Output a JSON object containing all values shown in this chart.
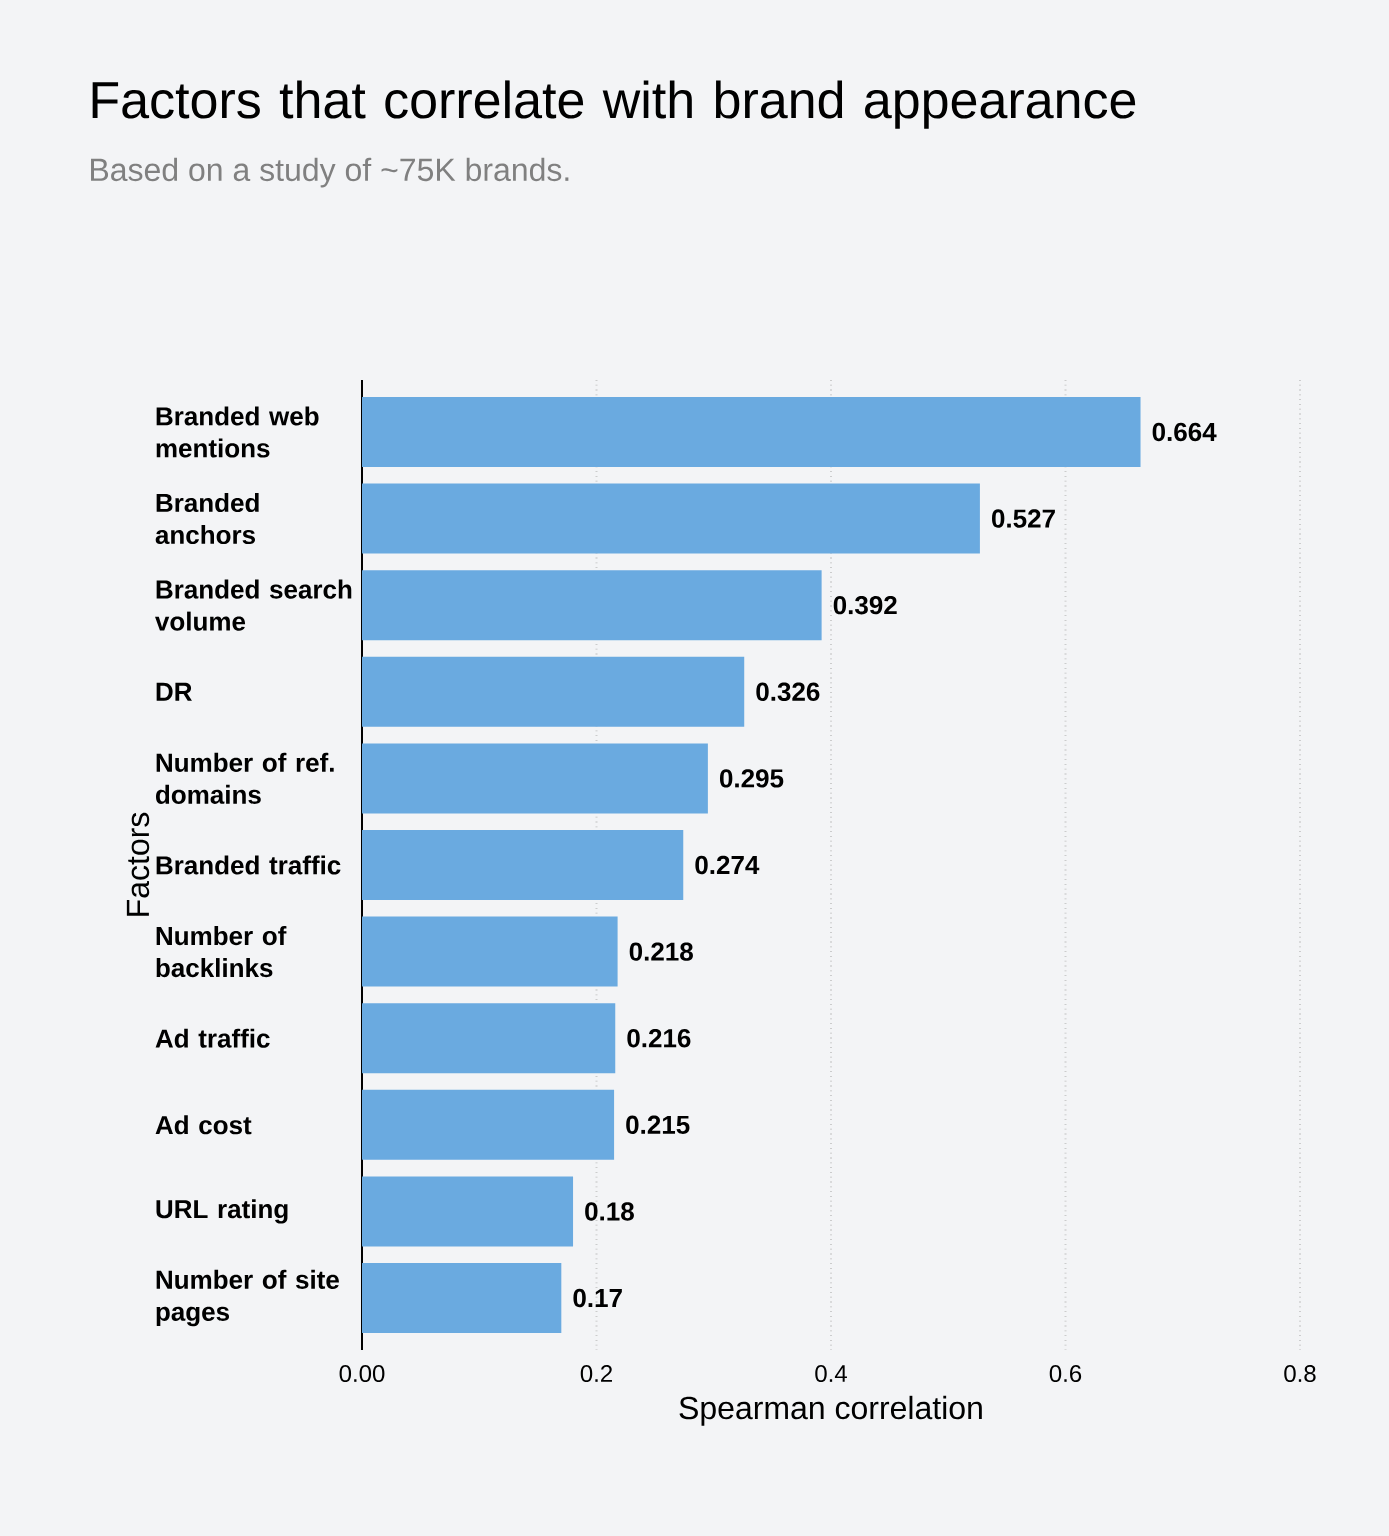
{
  "chart_data": {
    "type": "bar",
    "orientation": "horizontal",
    "title": "Factors that correlate with brand appearance",
    "subtitle": "Based on a study of ~75K brands.",
    "xlabel": "Spearman correlation",
    "ylabel": "Factors",
    "categories": [
      "Branded web mentions",
      "Branded anchors",
      "Branded search volume",
      "DR",
      "Number of ref. domains",
      "Branded traffic",
      "Number of backlinks",
      "Ad traffic",
      "Ad cost",
      "URL rating",
      "Number of site pages"
    ],
    "values": [
      0.664,
      0.527,
      0.392,
      0.326,
      0.295,
      0.274,
      0.218,
      0.216,
      0.215,
      0.18,
      0.17
    ],
    "color": "#6aaae0",
    "xlim": [
      0,
      0.8
    ],
    "xticks": [
      {
        "value": 0,
        "label": "0.00"
      },
      0.2,
      0.4,
      0.6,
      0.8
    ],
    "grid": "x",
    "data_labels": true
  }
}
